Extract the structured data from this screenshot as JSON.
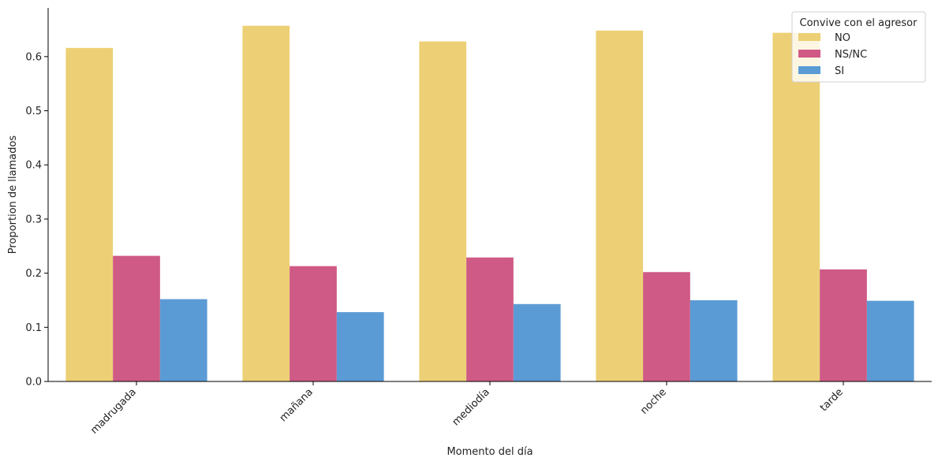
{
  "chart_data": {
    "type": "bar",
    "xlabel": "Momento del día",
    "ylabel": "Proportion de llamados",
    "ylim": [
      0,
      0.69
    ],
    "yticks": [
      0.0,
      0.1,
      0.2,
      0.3,
      0.4,
      0.5,
      0.6
    ],
    "yticklabels": [
      "0.0",
      "0.1",
      "0.2",
      "0.3",
      "0.4",
      "0.5",
      "0.6"
    ],
    "categories": [
      "madrugada",
      "mañana",
      "mediodía",
      "noche",
      "tarde"
    ],
    "series": [
      {
        "name": "NO",
        "color": "#EDD075",
        "values": [
          0.616,
          0.657,
          0.628,
          0.648,
          0.644
        ]
      },
      {
        "name": "NS/NC",
        "color": "#CF5A85",
        "values": [
          0.232,
          0.213,
          0.229,
          0.202,
          0.207
        ]
      },
      {
        "name": "SI",
        "color": "#5B9BD5",
        "values": [
          0.152,
          0.128,
          0.143,
          0.15,
          0.149
        ]
      }
    ],
    "legend": {
      "title": "Convive con el agresor",
      "placement": "top-right"
    },
    "grid": false
  }
}
